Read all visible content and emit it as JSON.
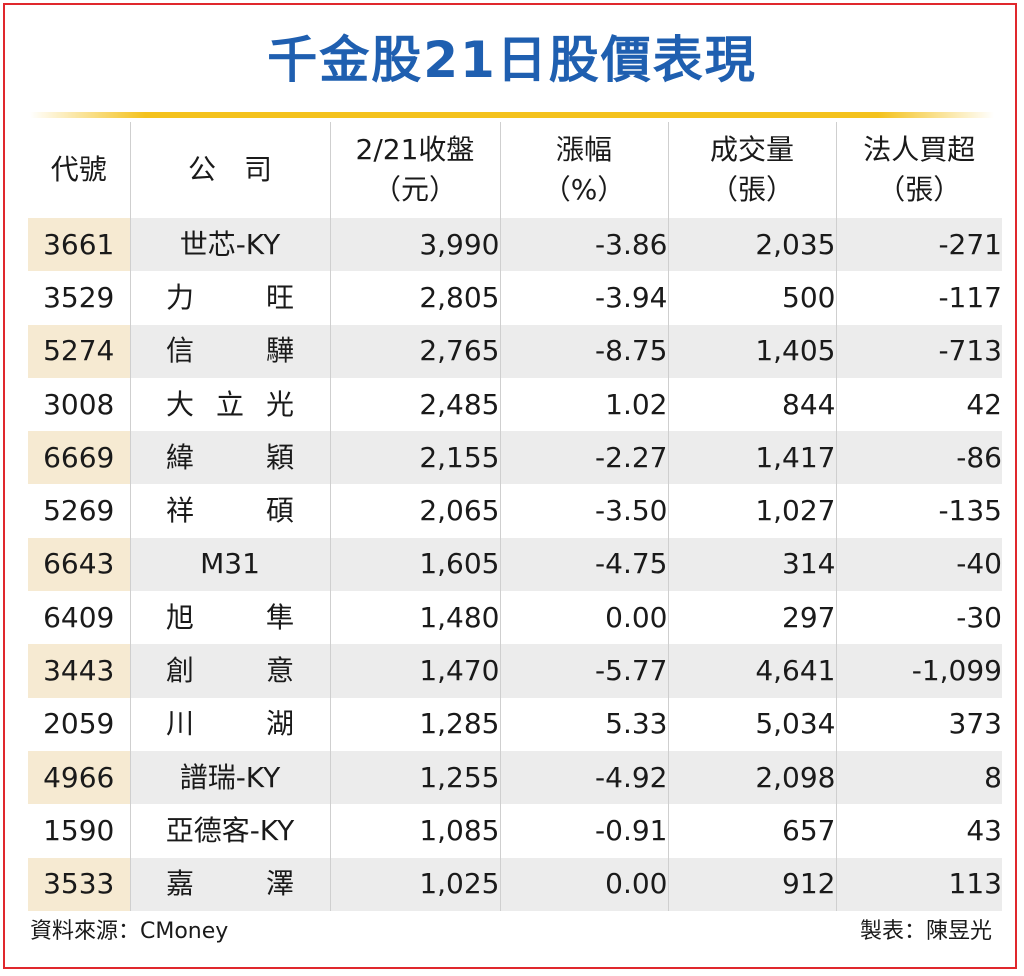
{
  "title": "千金股21日股價表現",
  "headers": [
    {
      "line1": "代號",
      "line2": ""
    },
    {
      "line1": "公　司",
      "line2": ""
    },
    {
      "line1": "2/21收盤",
      "line2": "（元）"
    },
    {
      "line1": "漲幅",
      "line2": "（%）"
    },
    {
      "line1": "成交量",
      "line2": "（張）"
    },
    {
      "line1": "法人買超",
      "line2": "（張）"
    }
  ],
  "rows": [
    {
      "code": "3661",
      "company": "世芯-KY",
      "close": "3,990",
      "change": "-3.86",
      "volume": "2,035",
      "net_buy": "-271"
    },
    {
      "code": "3529",
      "company": "力旺",
      "close": "2,805",
      "change": "-3.94",
      "volume": "500",
      "net_buy": "-117"
    },
    {
      "code": "5274",
      "company": "信驊",
      "close": "2,765",
      "change": "-8.75",
      "volume": "1,405",
      "net_buy": "-713"
    },
    {
      "code": "3008",
      "company": "大立光",
      "close": "2,485",
      "change": "1.02",
      "volume": "844",
      "net_buy": "42"
    },
    {
      "code": "6669",
      "company": "緯穎",
      "close": "2,155",
      "change": "-2.27",
      "volume": "1,417",
      "net_buy": "-86"
    },
    {
      "code": "5269",
      "company": "祥碩",
      "close": "2,065",
      "change": "-3.50",
      "volume": "1,027",
      "net_buy": "-135"
    },
    {
      "code": "6643",
      "company": "M31",
      "close": "1,605",
      "change": "-4.75",
      "volume": "314",
      "net_buy": "-40"
    },
    {
      "code": "6409",
      "company": "旭隼",
      "close": "1,480",
      "change": "0.00",
      "volume": "297",
      "net_buy": "-30"
    },
    {
      "code": "3443",
      "company": "創意",
      "close": "1,470",
      "change": "-5.77",
      "volume": "4,641",
      "net_buy": "-1,099"
    },
    {
      "code": "2059",
      "company": "川湖",
      "close": "1,285",
      "change": "5.33",
      "volume": "5,034",
      "net_buy": "373"
    },
    {
      "code": "4966",
      "company": "譜瑞-KY",
      "close": "1,255",
      "change": "-4.92",
      "volume": "2,098",
      "net_buy": "8"
    },
    {
      "code": "1590",
      "company": "亞德客-KY",
      "close": "1,085",
      "change": "-0.91",
      "volume": "657",
      "net_buy": "43"
    },
    {
      "code": "3533",
      "company": "嘉澤",
      "close": "1,025",
      "change": "0.00",
      "volume": "912",
      "net_buy": "113"
    }
  ],
  "footer": {
    "source": "資料來源：CMoney",
    "maker": "製表：陳昱光"
  },
  "colors": {
    "title": "#1f5fb0",
    "rule": "#f4c21d",
    "border": "#e0282d",
    "row_shade": "#ececec",
    "code_shade": "#f6ead2"
  }
}
